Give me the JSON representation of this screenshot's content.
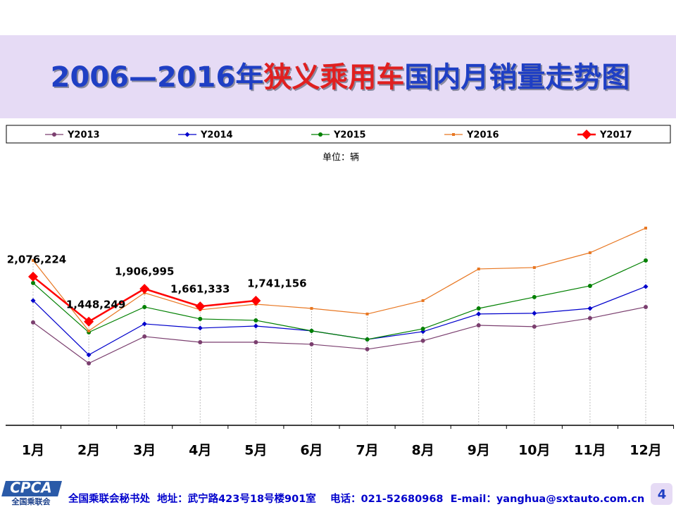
{
  "chart_data": {
    "type": "line",
    "title": [
      "2006—2016年",
      "狭义乘用车",
      "国内月销量走势图"
    ],
    "unit": "单位：辆",
    "categories": [
      "1月",
      "2月",
      "3月",
      "4月",
      "5月",
      "6月",
      "7月",
      "8月",
      "9月",
      "10月",
      "11月",
      "12月"
    ],
    "ylim": [
      0,
      3000000
    ],
    "legend": "top",
    "series": [
      {
        "name": "Y2013",
        "color": "#7b3f6f",
        "marker": "circle",
        "values": [
          1437000,
          866000,
          1240000,
          1161000,
          1161000,
          1132000,
          1063000,
          1181000,
          1397000,
          1378000,
          1496000,
          1653000
        ]
      },
      {
        "name": "Y2014",
        "color": "#0000cc",
        "marker": "diamond",
        "values": [
          1742000,
          984000,
          1417000,
          1358000,
          1387000,
          1319000,
          1200000,
          1309000,
          1555000,
          1565000,
          1633000,
          1938000
        ]
      },
      {
        "name": "Y2015",
        "color": "#008000",
        "marker": "circle",
        "values": [
          1988000,
          1299000,
          1653000,
          1486000,
          1466000,
          1319000,
          1200000,
          1348000,
          1633000,
          1791000,
          1948000,
          2303000
        ]
      },
      {
        "name": "Y2016",
        "color": "#e87722",
        "marker": "square",
        "values": [
          2303000,
          1319000,
          1850000,
          1614000,
          1692000,
          1633000,
          1555000,
          1742000,
          2184000,
          2204000,
          2411000,
          2755000
        ]
      },
      {
        "name": "Y2017",
        "color": "#ff0000",
        "marker": "bigdiamond",
        "values": [
          2076224,
          1448249,
          1906995,
          1661333,
          1741156,
          null,
          null,
          null,
          null,
          null,
          null,
          null
        ],
        "value_labels": [
          "2,076,224",
          "1,448,249",
          "1,906,995",
          "1,661,333",
          "1,741,156",
          null,
          null,
          null,
          null,
          null,
          null,
          null
        ]
      }
    ]
  },
  "footer": {
    "logo": "CPCA",
    "logo_sub": "全国乘联会",
    "text": "全国乘联会秘书处  地址：武宁路423号18号楼901室    电话：021-52680968  E-mail：yanghua@sxtauto.com.cn",
    "page": "4"
  }
}
